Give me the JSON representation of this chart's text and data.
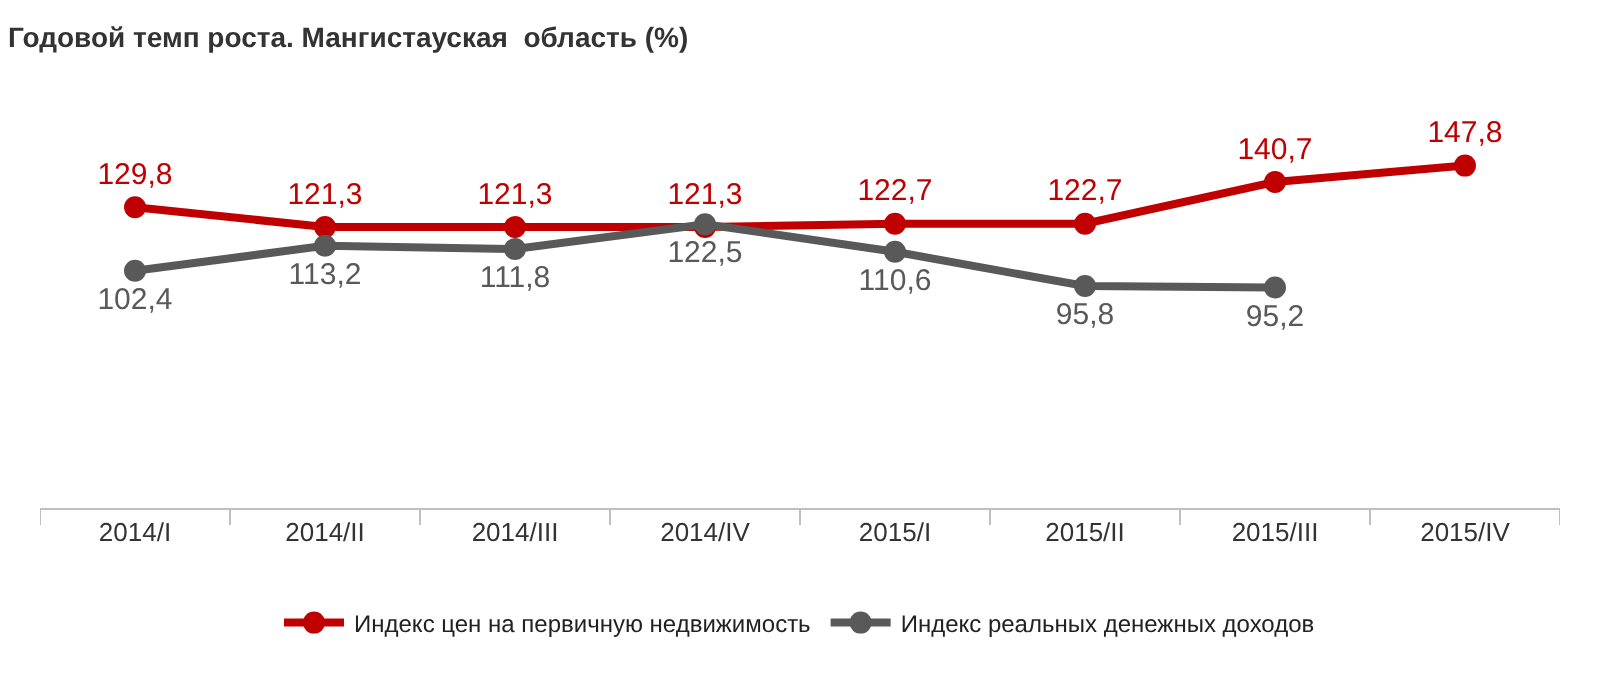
{
  "chart_data": {
    "type": "line",
    "title": "Годовой темп роста. Мангистауская  область (%)",
    "categories": [
      "2014/I",
      "2014/II",
      "2014/III",
      "2014/IV",
      "2015/I",
      "2015/II",
      "2015/III",
      "2015/IV"
    ],
    "series": [
      {
        "name": "Индекс цен на первичную недвижимость",
        "color": "#c00000",
        "values": [
          129.8,
          121.3,
          121.3,
          121.3,
          122.7,
          122.7,
          140.7,
          147.8
        ],
        "value_labels": [
          "129,8",
          "121,3",
          "121,3",
          "121,3",
          "122,7",
          "122,7",
          "140,7",
          "147,8"
        ]
      },
      {
        "name": "Индекс реальных денежных доходов",
        "color": "#595959",
        "values": [
          102.4,
          113.2,
          111.8,
          122.5,
          110.6,
          95.8,
          95.2,
          null
        ],
        "value_labels": [
          "102,4",
          "113,2",
          "111,8",
          "122,5",
          "110,6",
          "95,8",
          "95,2",
          null
        ]
      }
    ],
    "marker": "circle",
    "line_style": "solid",
    "legend": "bottom"
  }
}
